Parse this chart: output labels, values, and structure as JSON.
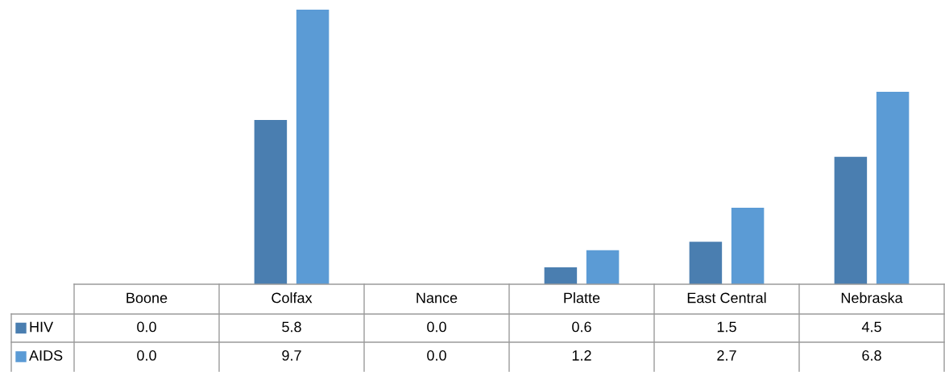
{
  "chart_data": {
    "type": "bar",
    "categories": [
      "Boone",
      "Colfax",
      "Nance",
      "Platte",
      "East Central",
      "Nebraska"
    ],
    "series": [
      {
        "name": "HIV",
        "color": "#4a7eb0",
        "values": [
          0.0,
          5.8,
          0.0,
          0.6,
          1.5,
          4.5
        ],
        "value_labels": [
          "0.0",
          "5.8",
          "0.0",
          "0.6",
          "1.5",
          "4.5"
        ]
      },
      {
        "name": "AIDS",
        "color": "#5b9bd5",
        "values": [
          0.0,
          9.7,
          0.0,
          1.2,
          2.7,
          6.8
        ],
        "value_labels": [
          "0.0",
          "9.7",
          "0.0",
          "1.2",
          "2.7",
          "6.8"
        ]
      }
    ],
    "legend": "bottom"
  }
}
